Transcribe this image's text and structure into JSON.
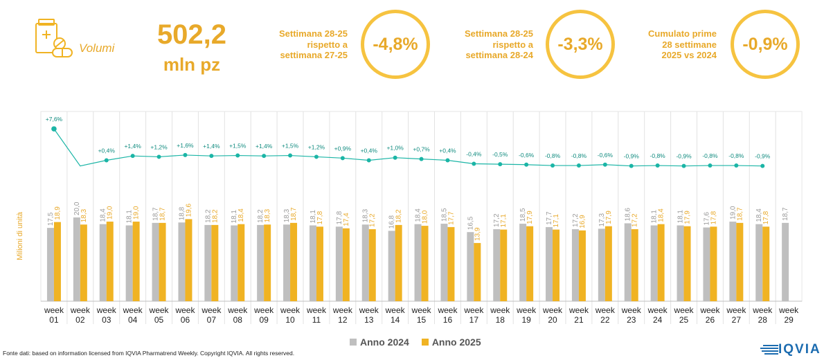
{
  "kpi": {
    "label": "Volumi",
    "value": "502,2",
    "unit": "mln pz",
    "icon": "pharmacy-pills-icon"
  },
  "comparisons": [
    {
      "text": [
        "Settimana 28-25",
        "rispetto a",
        "settimana 27-25"
      ],
      "value": "-4,8%"
    },
    {
      "text": [
        "Settimana 28-25",
        "rispetto a",
        "settimana 28-24"
      ],
      "value": "-3,3%"
    },
    {
      "text": [
        "Cumulato prime",
        "28 settimane",
        "2025 vs 2024"
      ],
      "value": "-0,9%"
    }
  ],
  "colors": {
    "accent": "#F0B323",
    "series2024": "#BFBFBF",
    "series2025": "#F0B323",
    "line": "#1BB5A6",
    "circle": "#F6C340"
  },
  "chart_data": {
    "type": "bar",
    "ylabel": "Milioni di unità",
    "categories": [
      "01",
      "02",
      "03",
      "04",
      "05",
      "06",
      "07",
      "08",
      "09",
      "10",
      "11",
      "12",
      "13",
      "14",
      "15",
      "16",
      "17",
      "18",
      "19",
      "20",
      "21",
      "22",
      "23",
      "24",
      "25",
      "26",
      "27",
      "28",
      "29"
    ],
    "category_prefix": "week",
    "series": [
      {
        "name": "Anno 2024",
        "values": [
          17.5,
          20.0,
          18.4,
          18.1,
          18.7,
          18.8,
          18.2,
          18.1,
          18.2,
          18.3,
          18.1,
          17.8,
          18.3,
          16.8,
          18.4,
          18.5,
          16.5,
          17.2,
          18.5,
          17.7,
          17.2,
          17.3,
          18.6,
          18.1,
          18.1,
          17.6,
          19.0,
          18.4,
          18.7
        ],
        "labels": [
          "17,5",
          "20,0",
          "18,4",
          "18,1",
          "18,7",
          "18,8",
          "18,2",
          "18,1",
          "18,2",
          "18,3",
          "18,1",
          "17,8",
          "18,3",
          "16,8",
          "18,4",
          "18,5",
          "16,5",
          "17,2",
          "18,5",
          "17,7",
          "17,2",
          "17,3",
          "18,6",
          "18,1",
          "18,1",
          "17,6",
          "19,0",
          "18,4",
          "18,7"
        ]
      },
      {
        "name": "Anno 2025",
        "values": [
          18.9,
          18.3,
          19.0,
          19.0,
          18.7,
          19.6,
          18.2,
          18.4,
          18.3,
          18.7,
          17.8,
          17.4,
          17.2,
          18.2,
          18.0,
          17.7,
          13.9,
          17.1,
          17.9,
          17.1,
          16.9,
          17.9,
          17.2,
          18.4,
          17.9,
          17.8,
          18.7,
          17.8,
          null
        ],
        "labels": [
          "18,9",
          "18,3",
          "19,0",
          "19,0",
          "18,7",
          "19,6",
          "18,2",
          "18,4",
          "18,3",
          "18,7",
          "17,8",
          "17,4",
          "17,2",
          "18,2",
          "18,0",
          "17,7",
          "13,9",
          "17,1",
          "17,9",
          "17,1",
          "16,9",
          "17,9",
          "17,2",
          "18,4",
          "17,9",
          "17,8",
          "18,7",
          "17,8",
          ""
        ]
      }
    ],
    "cumulative_change": {
      "values": [
        7.6,
        -0.9,
        0.4,
        1.4,
        1.2,
        1.6,
        1.4,
        1.5,
        1.4,
        1.5,
        1.2,
        0.9,
        0.4,
        1.0,
        0.7,
        0.4,
        -0.4,
        -0.5,
        -0.6,
        -0.8,
        -0.8,
        -0.6,
        -0.9,
        -0.8,
        -0.9,
        -0.8,
        -0.8,
        -0.9
      ],
      "labels": [
        "+7,6%",
        "",
        "+0,4%",
        "+1,4%",
        "+1,2%",
        "+1,6%",
        "+1,4%",
        "+1,5%",
        "+1,4%",
        "+1,5%",
        "+1,2%",
        "+0,9%",
        "+0,4%",
        "+1,0%",
        "+0,7%",
        "+0,4%",
        "-0,4%",
        "-0,5%",
        "-0,6%",
        "-0,8%",
        "-0,8%",
        "-0,6%",
        "-0,9%",
        "-0,8%",
        "-0,9%",
        "-0,8%",
        "-0,8%",
        "-0,9%"
      ]
    },
    "legend_position": "bottom"
  },
  "source": "Fonte dati: based on information licensed from IQVIA Pharmatrend Weekly. Copyright IQVIA. All rights reserved.",
  "logo": {
    "text": "IQVIA"
  }
}
